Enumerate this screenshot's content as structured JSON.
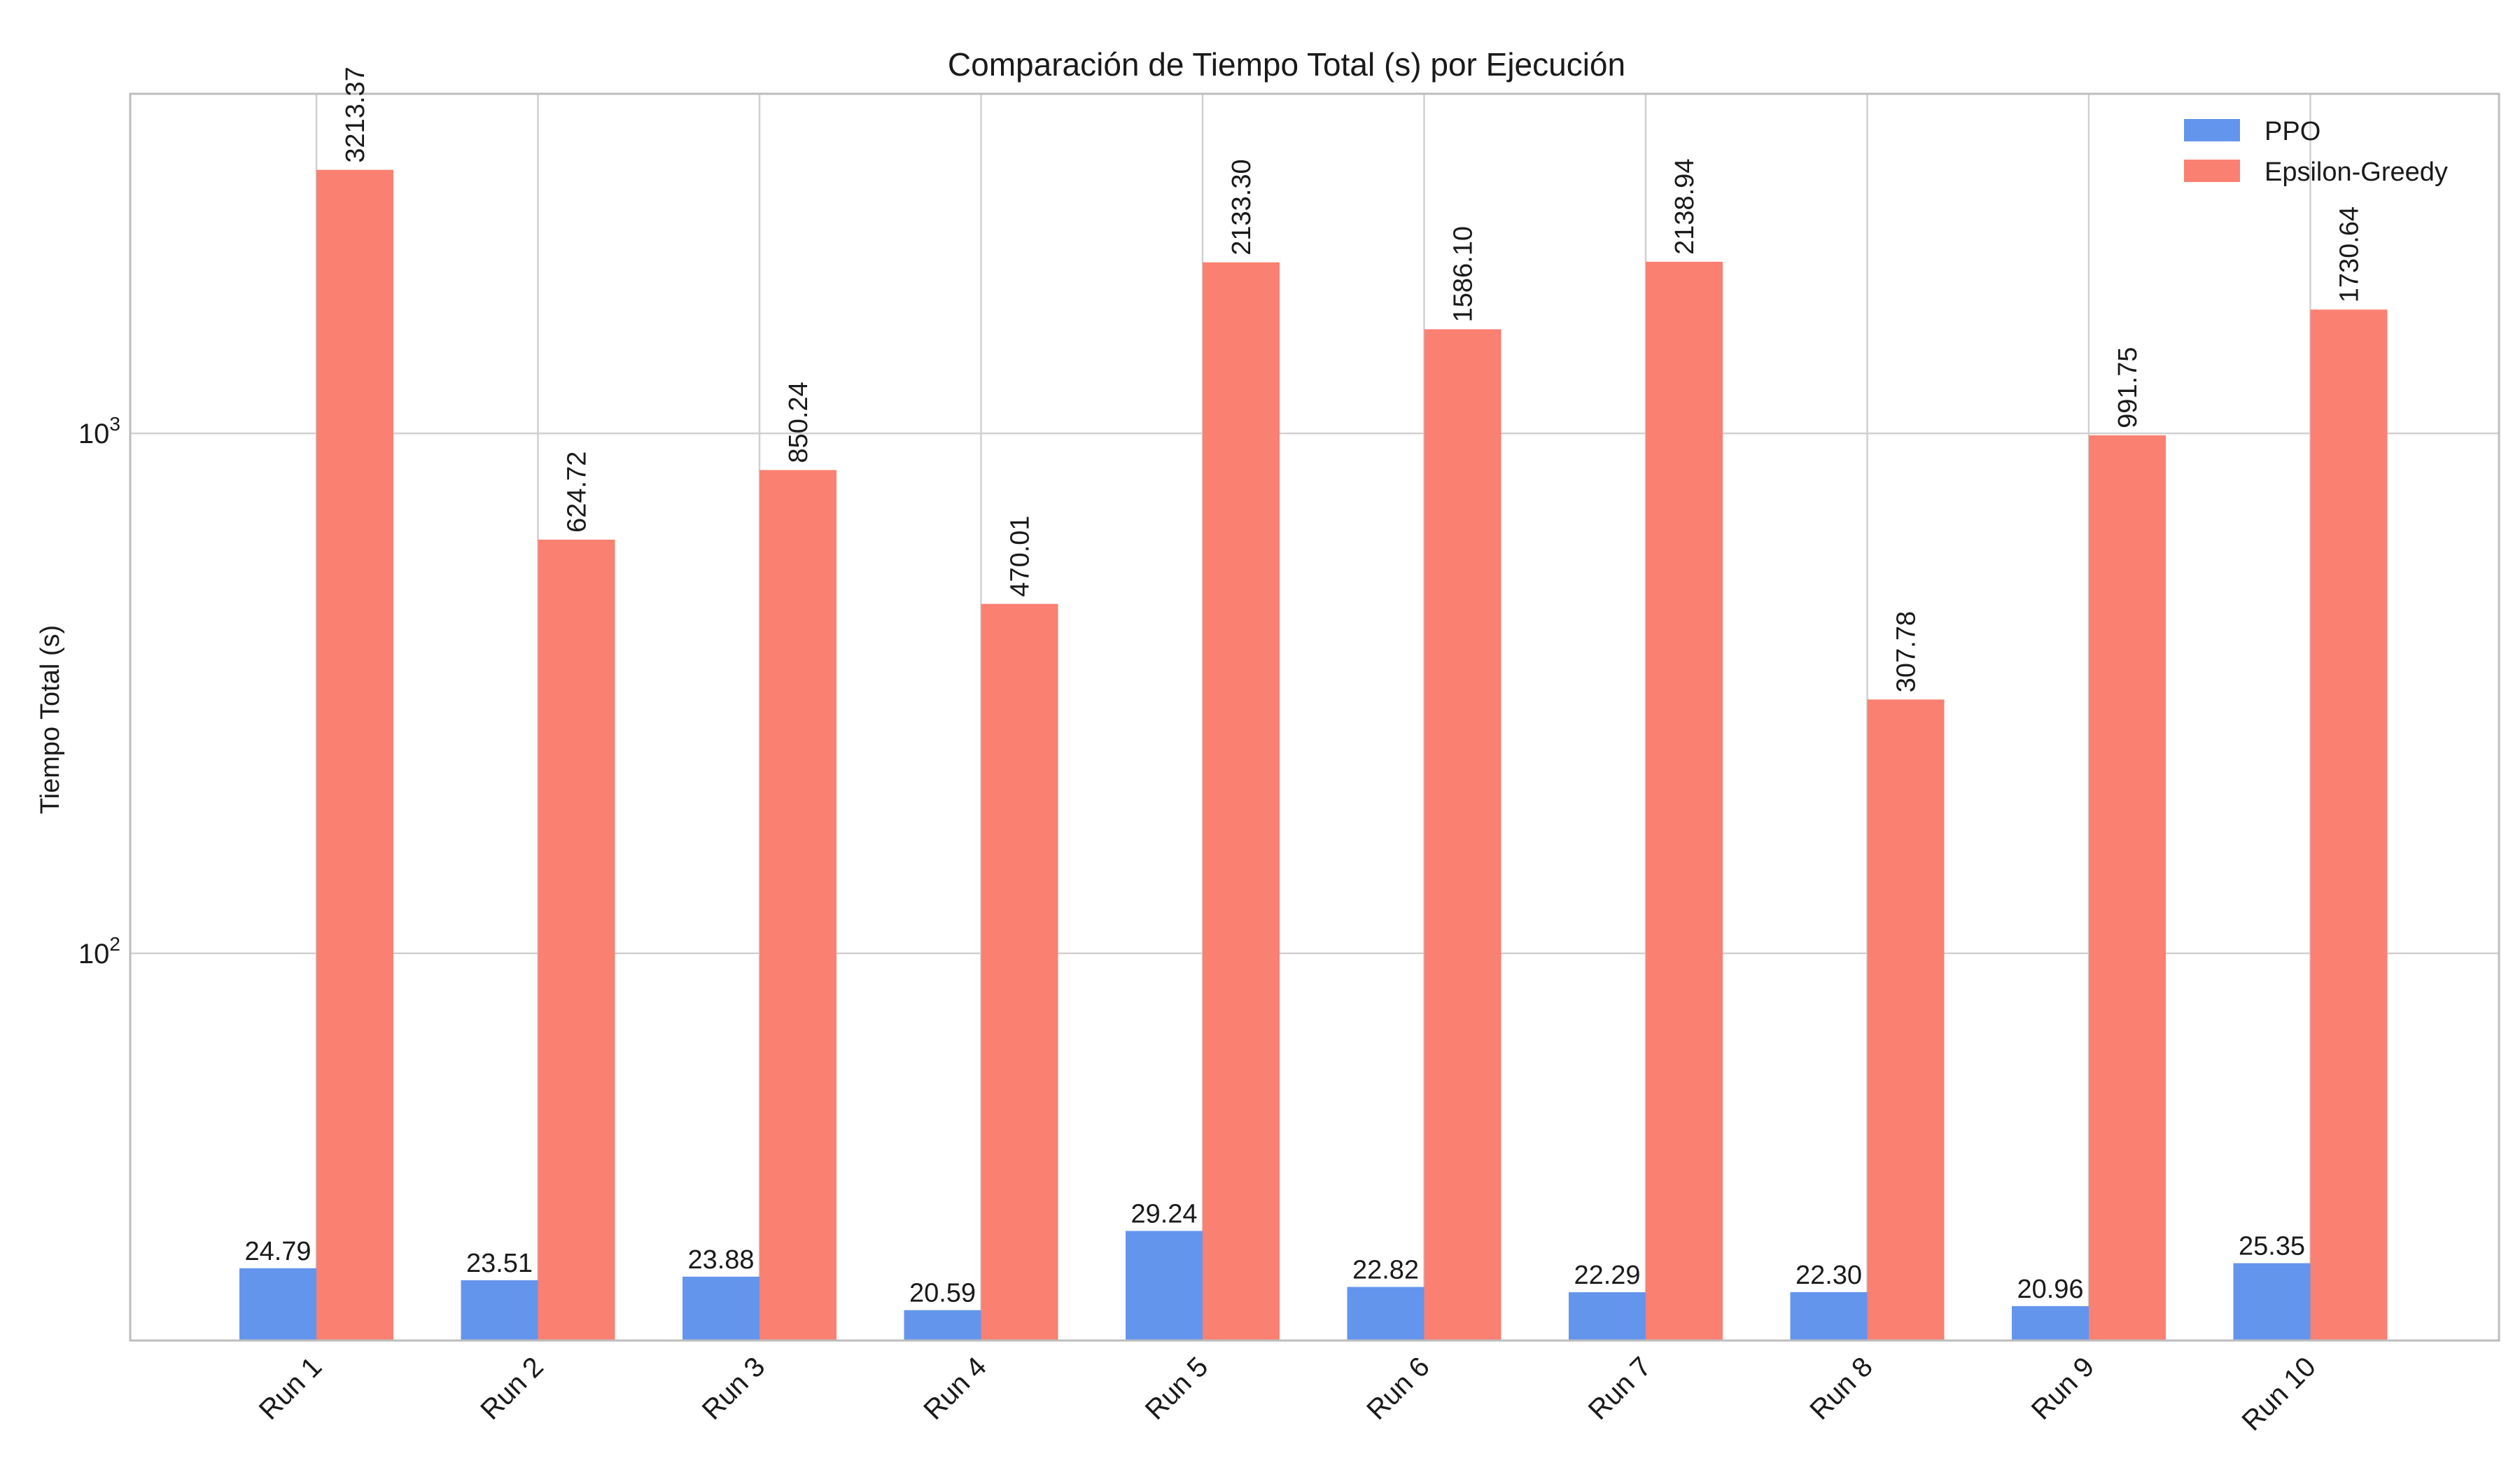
{
  "chart_data": {
    "type": "bar",
    "title": "Comparación de Tiempo Total (s) por Ejecución",
    "xlabel": "",
    "ylabel": "Tiempo Total (s)",
    "yscale": "log",
    "ylim": [
      18,
      4500
    ],
    "yticks": [
      {
        "value": 100,
        "base": "10",
        "exp": "2"
      },
      {
        "value": 1000,
        "base": "10",
        "exp": "3"
      }
    ],
    "categories": [
      "Run 1",
      "Run 2",
      "Run 3",
      "Run 4",
      "Run 5",
      "Run 6",
      "Run 7",
      "Run 8",
      "Run 9",
      "Run 10"
    ],
    "series": [
      {
        "name": "PPO",
        "color": "#6495ed",
        "values": [
          24.79,
          23.51,
          23.88,
          20.59,
          29.24,
          22.82,
          22.29,
          22.3,
          20.96,
          25.35
        ],
        "labels": [
          "24.79",
          "23.51",
          "23.88",
          "20.59",
          "29.24",
          "22.82",
          "22.29",
          "22.30",
          "20.96",
          "25.35"
        ]
      },
      {
        "name": "Epsilon-Greedy",
        "color": "#fa8072",
        "values": [
          3213.37,
          624.72,
          850.24,
          470.01,
          2133.3,
          1586.1,
          2138.94,
          307.78,
          991.75,
          1730.64
        ],
        "labels": [
          "3213.37",
          "624.72",
          "850.24",
          "470.01",
          "2133.30",
          "1586.10",
          "2138.94",
          "307.78",
          "991.75",
          "1730.64"
        ]
      }
    ],
    "grid": true,
    "legend_position": "top-right"
  }
}
